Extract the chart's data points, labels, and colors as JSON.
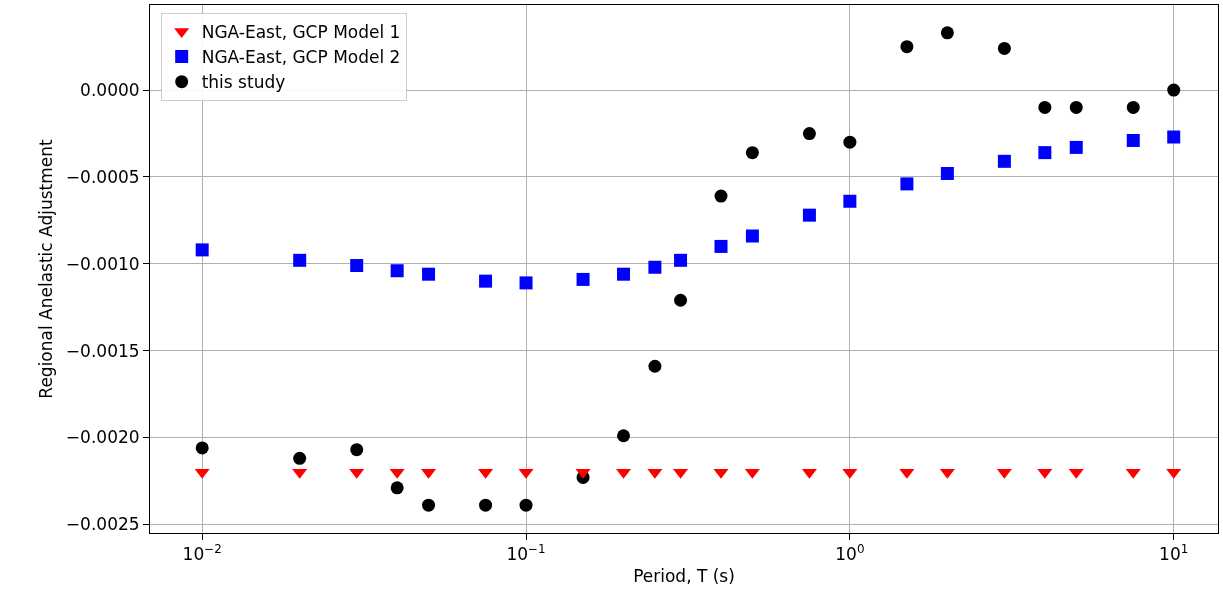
{
  "chart_data": {
    "type": "scatter",
    "xlabel": "Period, T (s)",
    "ylabel": "Regional Anelastic Adjustment",
    "x": [
      0.01,
      0.02,
      0.03,
      0.04,
      0.05,
      0.075,
      0.1,
      0.15,
      0.2,
      0.25,
      0.3,
      0.4,
      0.5,
      0.75,
      1,
      1.5,
      2,
      3,
      4,
      5,
      7.5,
      10
    ],
    "series": [
      {
        "name": "NGA-East, GCP Model 1",
        "color": "#ff0000",
        "marker": "triangle",
        "values": [
          -0.0022,
          -0.0022,
          -0.0022,
          -0.0022,
          -0.0022,
          -0.0022,
          -0.0022,
          -0.0022,
          -0.0022,
          -0.0022,
          -0.0022,
          -0.0022,
          -0.0022,
          -0.0022,
          -0.0022,
          -0.0022,
          -0.0022,
          -0.0022,
          -0.0022,
          -0.0022,
          -0.0022,
          -0.0022
        ]
      },
      {
        "name": "NGA-East, GCP Model 2",
        "color": "#0000ff",
        "marker": "square",
        "values": [
          -0.00092,
          -0.00098,
          -0.00101,
          -0.00104,
          -0.00106,
          -0.0011,
          -0.00111,
          -0.00109,
          -0.00106,
          -0.00102,
          -0.00098,
          -0.0009,
          -0.00084,
          -0.00072,
          -0.00064,
          -0.00054,
          -0.00048,
          -0.00041,
          -0.00036,
          -0.00033,
          -0.00029,
          -0.00027
        ]
      },
      {
        "name": "this study",
        "color": "#000000",
        "marker": "circle",
        "values": [
          -0.00206,
          -0.00212,
          -0.00207,
          -0.00229,
          -0.00239,
          -0.00239,
          -0.00239,
          -0.00223,
          -0.00199,
          -0.00159,
          -0.00121,
          -0.00061,
          -0.00036,
          -0.00025,
          -0.0003,
          0.00025,
          0.00033,
          0.00024,
          -0.0001,
          -0.0001,
          -0.0001,
          0.0
        ]
      }
    ],
    "log": "x",
    "xlim": [
      0.0069,
      13.7
    ],
    "ylim": [
      -0.00255,
      0.00049
    ],
    "xticks": [
      {
        "value": 0.01,
        "label": "10$^{−2}$"
      },
      {
        "value": 0.1,
        "label": "10$^{−1}$"
      },
      {
        "value": 1,
        "label": "10$^{0}$"
      },
      {
        "value": 10,
        "label": "10$^{1}$"
      }
    ],
    "yticks": [
      {
        "value": -0.0025,
        "label": "−0.0025"
      },
      {
        "value": -0.002,
        "label": "−0.0020"
      },
      {
        "value": -0.0015,
        "label": "−0.0015"
      },
      {
        "value": -0.001,
        "label": "−0.0010"
      },
      {
        "value": -0.0005,
        "label": "−0.0005"
      },
      {
        "value": 0.0,
        "label": "0.0000"
      }
    ],
    "grid": true,
    "legend": "top left"
  }
}
